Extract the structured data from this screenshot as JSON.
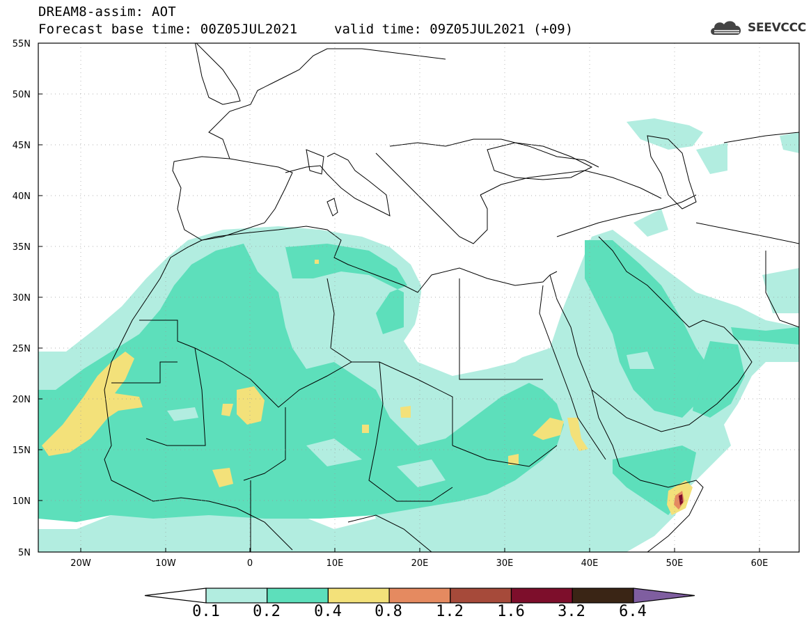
{
  "header": {
    "title": "DREAM8-assim: AOT",
    "base_time": "Forecast base time: 00Z05JUL2021",
    "valid_time": "valid time: 09Z05JUL2021 (+09)"
  },
  "logo": {
    "text": "SEEVCCC",
    "icon": "cloud-icon"
  },
  "map": {
    "lat_labels": [
      "55N",
      "50N",
      "45N",
      "40N",
      "35N",
      "30N",
      "25N",
      "20N",
      "15N",
      "10N",
      "5N"
    ],
    "lon_labels": [
      "20W",
      "10W",
      "0",
      "10E",
      "20E",
      "30E",
      "40E",
      "50E",
      "60E"
    ]
  },
  "legend": {
    "labels": [
      "0.1",
      "0.2",
      "0.4",
      "0.8",
      "1.2",
      "1.6",
      "3.2",
      "6.4"
    ],
    "colors": [
      "#ffffff",
      "#b2ede0",
      "#5ddfbb",
      "#f3e17a",
      "#e58a60",
      "#a64a3a",
      "#7d0e2b",
      "#3a2515",
      "#7f5ea0"
    ]
  }
}
